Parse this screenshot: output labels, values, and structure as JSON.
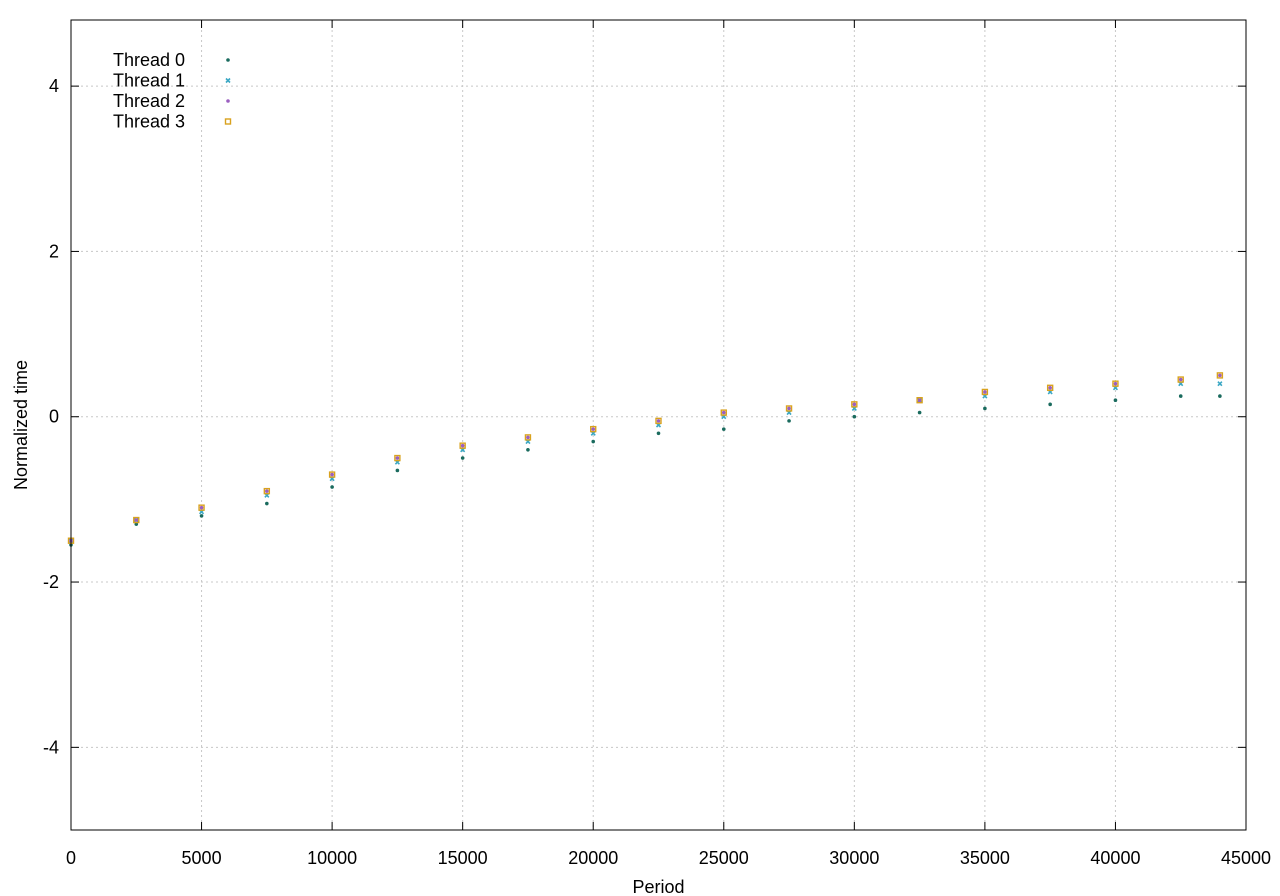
{
  "chart_data": {
    "type": "scatter",
    "title": "",
    "xlabel": "Period",
    "ylabel": "Normalized time",
    "xlim": [
      0,
      45000
    ],
    "ylim": [
      -5,
      4.8
    ],
    "x_ticks": [
      0,
      5000,
      10000,
      15000,
      20000,
      25000,
      30000,
      35000,
      40000,
      45000
    ],
    "x_tick_labels": [
      "0",
      "5000",
      "10000",
      "15000",
      "20000",
      "25000",
      "30000",
      "35000",
      "40000",
      "45000"
    ],
    "y_ticks": [
      -4,
      -2,
      0,
      2,
      4
    ],
    "y_tick_labels": [
      "-4",
      "-2",
      "0",
      "2",
      "4"
    ],
    "grid": true,
    "legend_position": "top-left",
    "series": [
      {
        "name": "Thread 0",
        "color": "#1a6b5e",
        "marker": "dot",
        "x": [
          0,
          2500,
          5000,
          7500,
          10000,
          12500,
          15000,
          17500,
          20000,
          22500,
          25000,
          27500,
          30000,
          32500,
          35000,
          37500,
          40000,
          42500,
          44000
        ],
        "y": [
          -1.55,
          -1.3,
          -1.2,
          -1.05,
          -0.85,
          -0.65,
          -0.5,
          -0.4,
          -0.3,
          -0.2,
          -0.15,
          -0.05,
          0.0,
          0.05,
          0.1,
          0.15,
          0.2,
          0.25,
          0.25
        ]
      },
      {
        "name": "Thread 1",
        "color": "#3aa7c4",
        "marker": "cross",
        "x": [
          0,
          2500,
          5000,
          7500,
          10000,
          12500,
          15000,
          17500,
          20000,
          22500,
          25000,
          27500,
          30000,
          32500,
          35000,
          37500,
          40000,
          42500,
          44000
        ],
        "y": [
          -1.5,
          -1.25,
          -1.15,
          -0.95,
          -0.75,
          -0.55,
          -0.4,
          -0.3,
          -0.2,
          -0.1,
          0.0,
          0.05,
          0.1,
          0.2,
          0.25,
          0.3,
          0.35,
          0.4,
          0.4
        ]
      },
      {
        "name": "Thread 2",
        "color": "#9b5fc0",
        "marker": "dot",
        "x": [
          0,
          2500,
          5000,
          7500,
          10000,
          12500,
          15000,
          17500,
          20000,
          22500,
          25000,
          27500,
          30000,
          32500,
          35000,
          37500,
          40000,
          42500,
          44000
        ],
        "y": [
          -1.5,
          -1.25,
          -1.1,
          -0.9,
          -0.7,
          -0.5,
          -0.35,
          -0.25,
          -0.15,
          -0.05,
          0.05,
          0.1,
          0.15,
          0.2,
          0.3,
          0.35,
          0.4,
          0.45,
          0.5
        ]
      },
      {
        "name": "Thread 3",
        "color": "#d9a21e",
        "marker": "square",
        "x": [
          0,
          2500,
          5000,
          7500,
          10000,
          12500,
          15000,
          17500,
          20000,
          22500,
          25000,
          27500,
          30000,
          32500,
          35000,
          37500,
          40000,
          42500,
          44000
        ],
        "y": [
          -1.5,
          -1.25,
          -1.1,
          -0.9,
          -0.7,
          -0.5,
          -0.35,
          -0.25,
          -0.15,
          -0.05,
          0.05,
          0.1,
          0.15,
          0.2,
          0.3,
          0.35,
          0.4,
          0.45,
          0.5
        ]
      }
    ]
  }
}
